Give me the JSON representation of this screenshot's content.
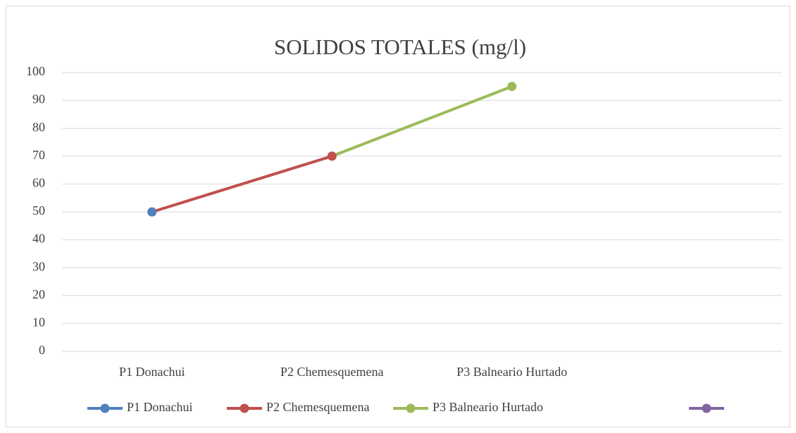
{
  "chart_data": {
    "type": "line",
    "title": "SOLIDOS TOTALES (mg/l)",
    "categories": [
      "P1 Donachui",
      "P2 Chemesquemena",
      "P3 Balneario Hurtado",
      null
    ],
    "series": [
      {
        "name": "P1 Donachui",
        "color": "#4f81bd",
        "values": [
          50,
          null,
          null,
          null
        ]
      },
      {
        "name": "P2 Chemesquemena",
        "color": "#c0504d",
        "values": [
          50,
          70,
          null,
          null
        ]
      },
      {
        "name": "P3 Balneario Hurtado",
        "color": "#9bbb59",
        "values": [
          null,
          70,
          95,
          null
        ]
      },
      {
        "name": null,
        "color": "#8064a2",
        "values": [
          null,
          null,
          null,
          null
        ]
      }
    ],
    "ylim": [
      0,
      100
    ],
    "yticks": [
      0,
      10,
      20,
      30,
      40,
      50,
      60,
      70,
      80,
      90,
      100
    ],
    "grid": true,
    "legend": "bottom"
  }
}
